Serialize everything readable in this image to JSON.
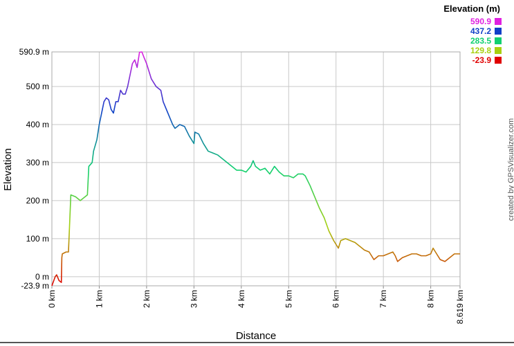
{
  "chart_data": {
    "type": "line",
    "legend_title": "Elevation (m)",
    "x_label": "Distance",
    "y_label": "Elevation",
    "credit": "created by GPSVisualizer.com",
    "grid": true,
    "color_scale": [
      {
        "value": 590.9,
        "color": "#e020e0"
      },
      {
        "value": 437.2,
        "color": "#1040c8"
      },
      {
        "value": 283.5,
        "color": "#10d070"
      },
      {
        "value": 129.8,
        "color": "#a8d010"
      },
      {
        "value": -23.9,
        "color": "#e00000"
      }
    ],
    "xlim": [
      0,
      8.619
    ],
    "ylim": [
      -23.9,
      590.9
    ],
    "xticks": [
      {
        "value": 0,
        "label": "0 km"
      },
      {
        "value": 1,
        "label": "1 km"
      },
      {
        "value": 2,
        "label": "2 km"
      },
      {
        "value": 3,
        "label": "3 km"
      },
      {
        "value": 4,
        "label": "4 km"
      },
      {
        "value": 5,
        "label": "5 km"
      },
      {
        "value": 6,
        "label": "6 km"
      },
      {
        "value": 7,
        "label": "7 km"
      },
      {
        "value": 8,
        "label": "8 km"
      },
      {
        "value": 8.619,
        "label": "8.619 km"
      }
    ],
    "yticks": [
      {
        "value": -23.9,
        "label": "-23.9 m"
      },
      {
        "value": 0,
        "label": "0 m"
      },
      {
        "value": 100,
        "label": "100 m"
      },
      {
        "value": 200,
        "label": "200 m"
      },
      {
        "value": 300,
        "label": "300 m"
      },
      {
        "value": 400,
        "label": "400 m"
      },
      {
        "value": 500,
        "label": "500 m"
      },
      {
        "value": 590.9,
        "label": "590.9 m"
      }
    ],
    "x": [
      0,
      0.07,
      0.1,
      0.15,
      0.2,
      0.21,
      0.22,
      0.3,
      0.35,
      0.4,
      0.5,
      0.6,
      0.7,
      0.75,
      0.78,
      0.85,
      0.88,
      0.95,
      1.0,
      1.05,
      1.1,
      1.15,
      1.2,
      1.25,
      1.3,
      1.35,
      1.4,
      1.45,
      1.5,
      1.55,
      1.6,
      1.65,
      1.7,
      1.75,
      1.8,
      1.85,
      1.9,
      1.95,
      2.0,
      2.05,
      2.1,
      2.15,
      2.2,
      2.3,
      2.35,
      2.45,
      2.55,
      2.6,
      2.7,
      2.8,
      2.9,
      3.0,
      3.02,
      3.1,
      3.2,
      3.3,
      3.4,
      3.5,
      3.6,
      3.7,
      3.8,
      3.9,
      4.0,
      4.1,
      4.2,
      4.25,
      4.3,
      4.4,
      4.5,
      4.6,
      4.7,
      4.8,
      4.9,
      5.0,
      5.1,
      5.2,
      5.3,
      5.35,
      5.45,
      5.55,
      5.65,
      5.75,
      5.85,
      5.95,
      6.05,
      6.1,
      6.2,
      6.3,
      6.4,
      6.5,
      6.6,
      6.7,
      6.8,
      6.9,
      7.0,
      7.1,
      7.2,
      7.25,
      7.3,
      7.4,
      7.5,
      7.6,
      7.7,
      7.8,
      7.9,
      8.0,
      8.05,
      8.1,
      8.2,
      8.3,
      8.4,
      8.5,
      8.619
    ],
    "values": [
      -23.9,
      0,
      5,
      -10,
      -15,
      50,
      60,
      65,
      65,
      215,
      210,
      200,
      210,
      215,
      290,
      300,
      330,
      360,
      400,
      430,
      460,
      470,
      465,
      440,
      430,
      460,
      460,
      490,
      480,
      480,
      500,
      530,
      560,
      570,
      550,
      590,
      590.9,
      575,
      560,
      540,
      520,
      510,
      500,
      490,
      460,
      430,
      400,
      390,
      400,
      395,
      370,
      350,
      380,
      375,
      350,
      330,
      325,
      320,
      310,
      300,
      290,
      280,
      280,
      275,
      290,
      305,
      290,
      280,
      285,
      270,
      290,
      275,
      265,
      265,
      260,
      270,
      270,
      265,
      240,
      210,
      180,
      155,
      120,
      95,
      75,
      95,
      100,
      95,
      90,
      80,
      70,
      65,
      45,
      55,
      55,
      60,
      65,
      55,
      40,
      50,
      55,
      60,
      60,
      55,
      55,
      60,
      75,
      65,
      45,
      40,
      50,
      60,
      60
    ]
  }
}
